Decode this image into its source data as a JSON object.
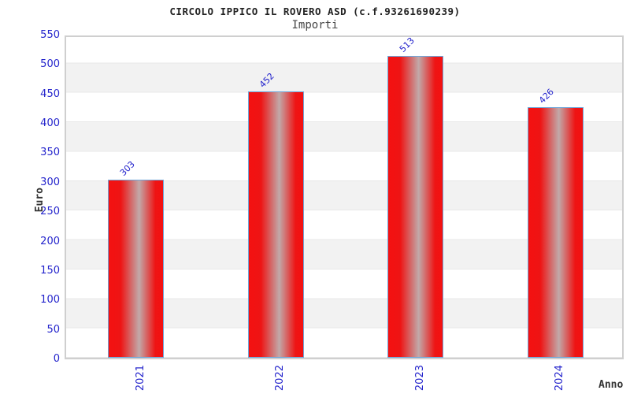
{
  "header": {
    "title": "CIRCOLO IPPICO IL ROVERO ASD (c.f.93261690239)",
    "subtitle": "Importi"
  },
  "chart_data": {
    "type": "bar",
    "title": "CIRCOLO IPPICO IL ROVERO ASD (c.f.93261690239)",
    "subtitle": "Importi",
    "categories": [
      "2021",
      "2022",
      "2023",
      "2024"
    ],
    "values": [
      303,
      452,
      513,
      426
    ],
    "xlabel": "Anno",
    "ylabel": "Euro",
    "ylim": [
      0,
      550
    ],
    "ytick_step": 50,
    "yticks": [
      0,
      50,
      100,
      150,
      200,
      250,
      300,
      350,
      400,
      450,
      500,
      550
    ],
    "grid": "alternating-horizontal-bands",
    "legend": "none",
    "bar_value_labels_rotation_deg": -45,
    "x_tick_rotation_deg": -90,
    "colors": {
      "bar_fill_edge": "#f41111",
      "bar_fill_highlight": "#c1a9a9",
      "bar_border": "#6fa7da",
      "tick_label": "#2424cc",
      "band_gray": "#f2f2f2",
      "band_white": "#ffffff",
      "plot_border": "#cfcfcf",
      "title_text": "#222222",
      "axis_title_text": "#333333"
    }
  }
}
